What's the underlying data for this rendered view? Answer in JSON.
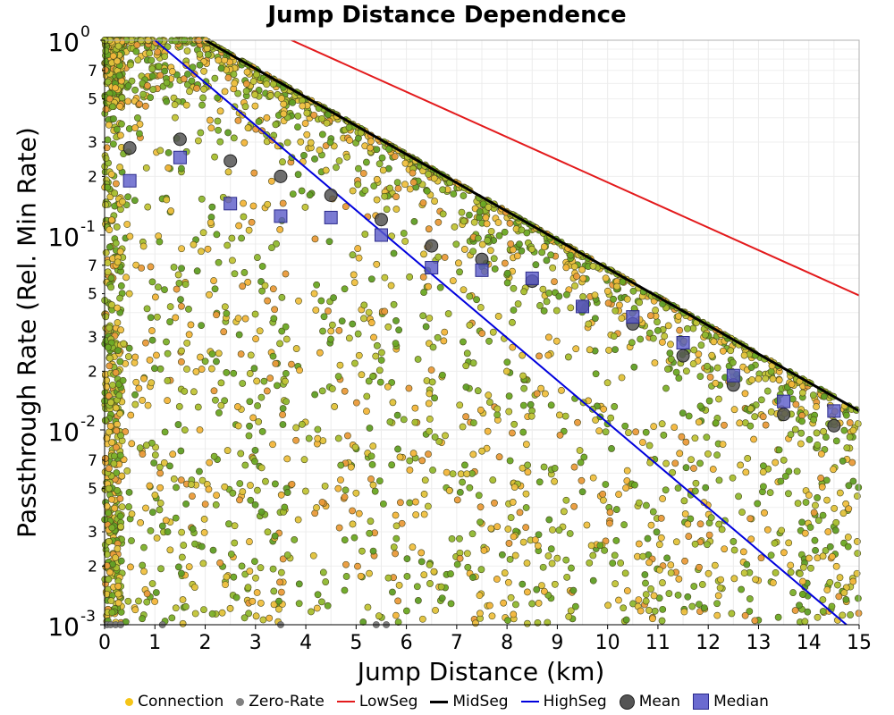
{
  "chart_data": {
    "type": "scatter",
    "title": "Jump Distance Dependence",
    "xlabel": "Jump Distance (km)",
    "ylabel": "Passthrough Rate (Rel. Min Rate)",
    "xlim": [
      0,
      15
    ],
    "ylim": [
      0.001,
      1
    ],
    "yscale": "log",
    "grid": true,
    "legend_position": "bottom",
    "x_ticks": [
      "0",
      "1",
      "2",
      "3",
      "4",
      "5",
      "6",
      "7",
      "8",
      "9",
      "10",
      "11",
      "12",
      "13",
      "14",
      "15"
    ],
    "y_major_ticks": [
      {
        "base": "10",
        "exp": "0",
        "value": 1
      },
      {
        "base": "10",
        "exp": "-1",
        "value": 0.1
      },
      {
        "base": "10",
        "exp": "-2",
        "value": 0.01
      },
      {
        "base": "10",
        "exp": "-3",
        "value": 0.001
      }
    ],
    "y_minor_ticks": [
      {
        "label": "7",
        "value": 0.7
      },
      {
        "label": "5",
        "value": 0.5
      },
      {
        "label": "3",
        "value": 0.3
      },
      {
        "label": "2",
        "value": 0.2
      },
      {
        "label": "7",
        "value": 0.07
      },
      {
        "label": "5",
        "value": 0.05
      },
      {
        "label": "3",
        "value": 0.03
      },
      {
        "label": "2",
        "value": 0.02
      },
      {
        "label": "7",
        "value": 0.007
      },
      {
        "label": "5",
        "value": 0.005
      },
      {
        "label": "3",
        "value": 0.003
      },
      {
        "label": "2",
        "value": 0.002
      }
    ],
    "series": [
      {
        "name": "Connection",
        "kind": "scatter",
        "color": "#f5c518",
        "count": 3200,
        "description_values": "dense cloud bounded above by MidSeg line"
      },
      {
        "name": "Zero-Rate",
        "kind": "scatter",
        "color": "#808080",
        "x": [
          0.05,
          0.12,
          0.22,
          0.32,
          1.15,
          3.5,
          5.4,
          5.6
        ],
        "y": [
          0.001,
          0.001,
          0.001,
          0.001,
          0.001,
          0.001,
          0.001,
          0.001
        ]
      },
      {
        "name": "LowSeg",
        "kind": "line",
        "color": "#e31a1c",
        "x": [
          0,
          15
        ],
        "y": [
          2.7,
          0.049
        ]
      },
      {
        "name": "MidSeg",
        "kind": "line",
        "color": "#000000",
        "x": [
          2,
          15
        ],
        "y": [
          1.0,
          0.0125
        ]
      },
      {
        "name": "HighSeg",
        "kind": "line",
        "color": "#0000dd",
        "x": [
          1,
          14.75
        ],
        "y": [
          1.0,
          0.001
        ]
      },
      {
        "name": "Mean",
        "kind": "marker",
        "color": "#555555",
        "x": [
          0.5,
          1.5,
          2.5,
          3.5,
          4.5,
          5.5,
          6.5,
          7.5,
          8.5,
          9.5,
          10.5,
          11.5,
          12.5,
          13.5,
          14.5
        ],
        "y": [
          0.28,
          0.31,
          0.24,
          0.2,
          0.16,
          0.12,
          0.088,
          0.075,
          0.058,
          0.043,
          0.035,
          0.024,
          0.017,
          0.012,
          0.0105
        ]
      },
      {
        "name": "Median",
        "kind": "marker",
        "color": "#5a5ac8",
        "x": [
          0.5,
          1.5,
          2.5,
          3.5,
          4.5,
          5.5,
          6.5,
          7.5,
          8.5,
          9.5,
          10.5,
          11.5,
          12.5,
          13.5,
          14.5
        ],
        "y": [
          0.19,
          0.25,
          0.145,
          0.125,
          0.123,
          0.1,
          0.068,
          0.066,
          0.06,
          0.043,
          0.038,
          0.028,
          0.019,
          0.014,
          0.0125
        ]
      }
    ]
  }
}
